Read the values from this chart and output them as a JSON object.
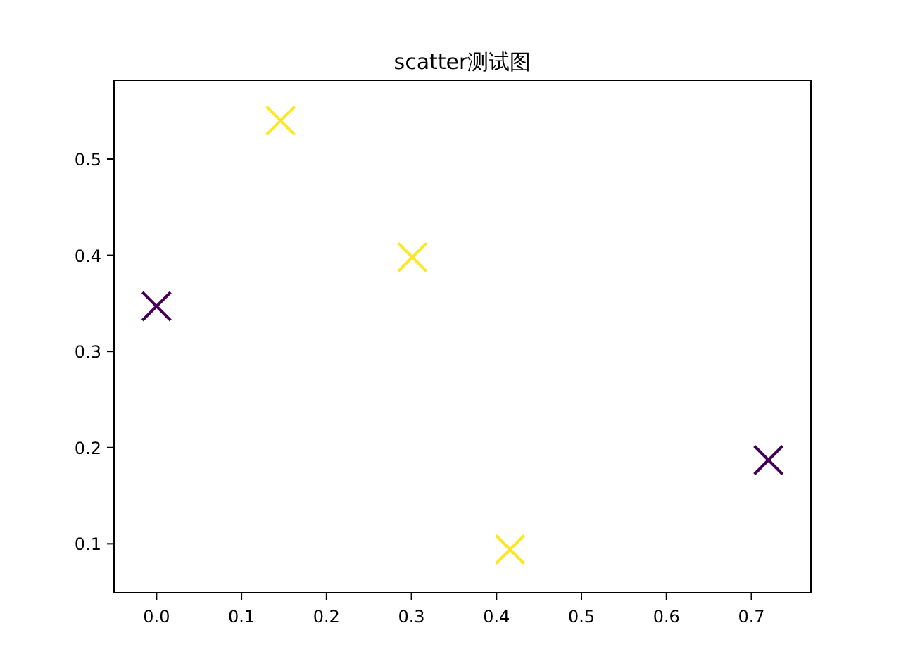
{
  "chart_data": {
    "type": "scatter",
    "title": "scatter测试图",
    "x": [
      0,
      0.146,
      0.301,
      0.416,
      0.72
    ],
    "values": [
      0.347,
      0.54,
      0.398,
      0.094,
      0.187
    ],
    "colors": [
      "#440154",
      "#fde725",
      "#fde725",
      "#fde725",
      "#440154"
    ],
    "marker": "cross",
    "xlim": [
      -0.05,
      0.77
    ],
    "ylim": [
      0.049,
      0.582
    ],
    "xticks": [
      {
        "value": 0,
        "label": "0.0"
      },
      0.1,
      0.2,
      0.3,
      0.4,
      0.5,
      0.6,
      0.7
    ],
    "yticks": [
      0.1,
      0.2,
      0.3,
      0.4,
      0.5
    ]
  }
}
